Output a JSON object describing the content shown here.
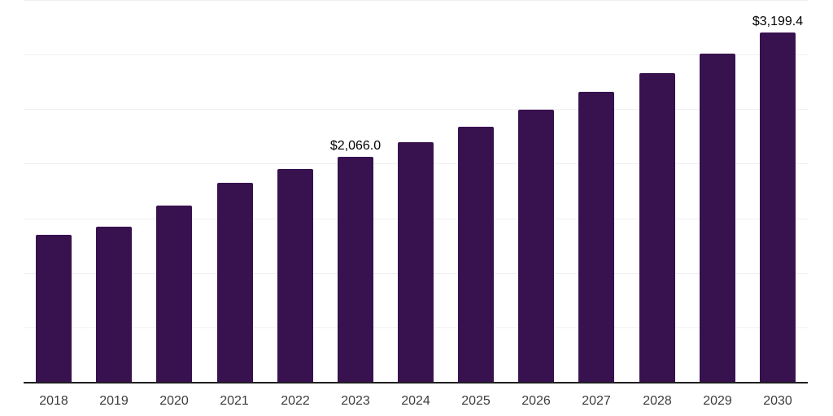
{
  "chart_data": {
    "type": "bar",
    "title": "",
    "categories": [
      "2018",
      "2019",
      "2020",
      "2021",
      "2022",
      "2023",
      "2024",
      "2025",
      "2026",
      "2027",
      "2028",
      "2029",
      "2030"
    ],
    "values": [
      1345,
      1426,
      1616,
      1828,
      1952,
      2066.0,
      2199,
      2339,
      2495,
      2660,
      2828,
      3005,
      3199.4
    ],
    "value_labels": [
      "",
      "",
      "",
      "",
      "",
      "$2,066.0",
      "",
      "",
      "",
      "",
      "",
      "",
      "$3,199.4"
    ],
    "xlabel": "",
    "ylabel": "",
    "ylim": [
      0,
      3500
    ],
    "grid_step": 500,
    "grid": true,
    "legend": "none",
    "colors": {
      "bar": "#38114F",
      "axis": "#1f1f1f",
      "tick_label": "#3d3d3d",
      "value_label": "#000000",
      "gridline": "#f0f0f3",
      "background": "#ffffff"
    }
  }
}
